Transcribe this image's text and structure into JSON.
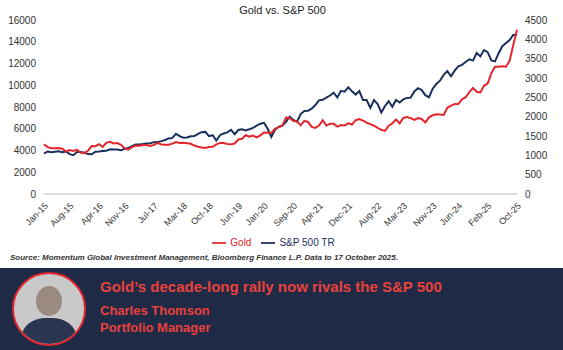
{
  "chart_data": {
    "type": "line",
    "title": "Gold vs. S&P 500",
    "source": "Source: Momentum Global Investment Management, Bloomberg Finance L.P. Data to 17 October 2025.",
    "categories": [
      "Jan-15",
      null,
      null,
      null,
      null,
      null,
      null,
      "Aug-15",
      null,
      null,
      null,
      null,
      null,
      null,
      null,
      "Apr-16",
      null,
      null,
      null,
      null,
      null,
      null,
      "Nov-16",
      null,
      null,
      null,
      null,
      null,
      null,
      null,
      "Jul-17",
      null,
      null,
      null,
      null,
      null,
      null,
      null,
      "Mar-18",
      null,
      null,
      null,
      null,
      null,
      null,
      "Oct-18",
      null,
      null,
      null,
      null,
      null,
      null,
      null,
      "Jun-19",
      null,
      null,
      null,
      null,
      null,
      null,
      "Jan-20",
      null,
      null,
      null,
      null,
      null,
      null,
      null,
      "Sep-20",
      null,
      null,
      null,
      null,
      null,
      null,
      "Apr-21",
      null,
      null,
      null,
      null,
      null,
      null,
      null,
      "Dec-21",
      null,
      null,
      null,
      null,
      null,
      null,
      null,
      "Aug-22",
      null,
      null,
      null,
      null,
      null,
      null,
      "Mar-23",
      null,
      null,
      null,
      null,
      null,
      null,
      null,
      "Nov-23",
      null,
      null,
      null,
      null,
      null,
      null,
      "Jun-24",
      null,
      null,
      null,
      null,
      null,
      null,
      null,
      "Feb-25",
      null,
      null,
      null,
      null,
      null,
      null,
      null,
      "Oct-25"
    ],
    "series": [
      {
        "name": "S&P 500 TR",
        "color": "#1b2f5e",
        "line_style": "solid",
        "axis": "y",
        "values": [
          3711,
          3913,
          3846,
          3880,
          3919,
          3837,
          3913,
          3668,
          3571,
          3867,
          3869,
          3802,
          3667,
          3651,
          3893,
          3903,
          3963,
          3967,
          4109,
          4103,
          4098,
          4018,
          4156,
          4232,
          4398,
          4563,
          4561,
          4601,
          4655,
          4676,
          4767,
          4771,
          4862,
          4970,
          5111,
          5161,
          5535,
          5319,
          5176,
          5190,
          5302,
          5327,
          5519,
          5688,
          5711,
          5316,
          5410,
          4914,
          5408,
          5568,
          5668,
          5892,
          5504,
          5884,
          5960,
          5852,
          5954,
          6076,
          6282,
          6462,
          6549,
          5997,
          5248,
          5911,
          6179,
          6293,
          6640,
          7105,
          6827,
          6638,
          7353,
          7625,
          7651,
          7851,
          8184,
          8613,
          8660,
          8854,
          9054,
          9317,
          8874,
          9486,
          9408,
          9818,
          9438,
          9142,
          9468,
          8636,
          8636,
          7911,
          8632,
          8266,
          7495,
          8092,
          8527,
          8026,
          8643,
          8416,
          8711,
          8838,
          8862,
          9434,
          9729,
          9557,
          9091,
          8891,
          9684,
          10112,
          10419,
          10956,
          11296,
          10827,
          11348,
          11739,
          11872,
          12143,
          12388,
          12266,
          12969,
          12646,
          13230,
          13041,
          12290,
          12196,
          12947,
          13589,
          13882,
          14147,
          14647,
          14594
        ]
      },
      {
        "name": "Gold",
        "color": "#e3262d",
        "line_style": "solid",
        "axis": "y2",
        "values": [
          1284,
          1213,
          1183,
          1184,
          1190,
          1172,
          1095,
          1135,
          1115,
          1142,
          1065,
          1061,
          1118,
          1238,
          1233,
          1290,
          1217,
          1322,
          1351,
          1309,
          1316,
          1273,
          1178,
          1146,
          1211,
          1255,
          1249,
          1269,
          1268,
          1242,
          1269,
          1322,
          1280,
          1271,
          1275,
          1303,
          1345,
          1318,
          1325,
          1315,
          1298,
          1253,
          1224,
          1202,
          1192,
          1215,
          1221,
          1282,
          1321,
          1316,
          1292,
          1284,
          1305,
          1409,
          1427,
          1520,
          1485,
          1511,
          1464,
          1517,
          1589,
          1585,
          1577,
          1686,
          1730,
          1768,
          1975,
          1967,
          1887,
          1879,
          1776,
          1891,
          1863,
          1734,
          1708,
          1769,
          1907,
          1770,
          1815,
          1814,
          1743,
          1784,
          1774,
          1829,
          1797,
          1909,
          1937,
          1897,
          1848,
          1807,
          1766,
          1711,
          1660,
          1633,
          1768,
          1824,
          1928,
          1827,
          1969,
          1990,
          1963,
          1919,
          1965,
          1940,
          1849,
          1983,
          2036,
          2063,
          2054,
          2044,
          2230,
          2286,
          2327,
          2327,
          2447,
          2503,
          2635,
          2744,
          2643,
          2625,
          2798,
          2858,
          3124,
          3289,
          3289,
          3303,
          3290,
          3448,
          3858,
          4250
        ]
      }
    ],
    "ylim": [
      0,
      16000
    ],
    "yticks": [
      0,
      2000,
      4000,
      6000,
      8000,
      10000,
      12000,
      14000,
      16000
    ],
    "y2lim": [
      0,
      4500
    ],
    "y2ticks": [
      0,
      500,
      1000,
      1500,
      2000,
      2500,
      3000,
      3500,
      4000,
      4500
    ],
    "grid": false,
    "legend": "bottom"
  },
  "banner": {
    "headline": "Gold’s decade-long rally now rivals the S&P 500",
    "name": "Charles Thomson",
    "role": "Portfolio Manager"
  }
}
